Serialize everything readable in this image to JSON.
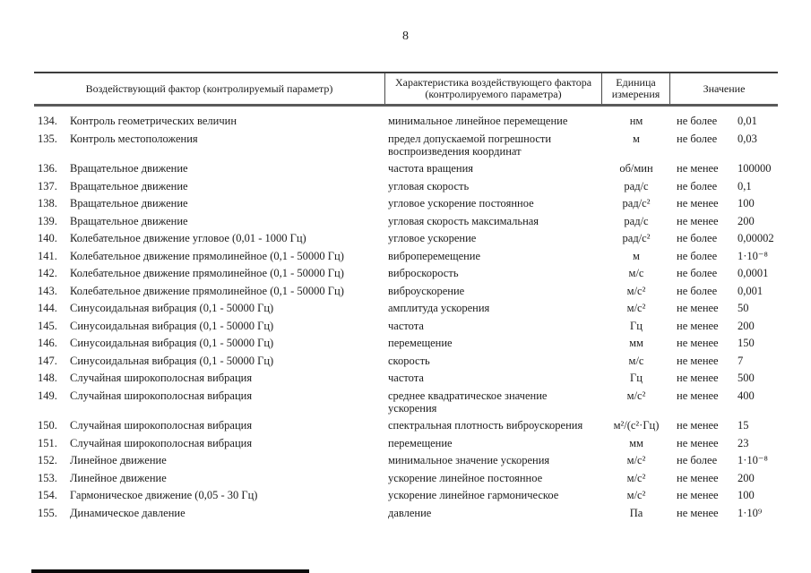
{
  "page": {
    "number": "8"
  },
  "table": {
    "headers": [
      "Воздействующий фактор (контролируемый параметр)",
      "Характеристика воздействующего фактора (контролируемого параметра)",
      "Единица измерения",
      "Значение"
    ],
    "rows": [
      {
        "num": "134.",
        "factor": "Контроль геометрических величин",
        "characteristic": "минимальное линейное перемещение",
        "unit": "нм",
        "criterion": "не более",
        "value": "0,01"
      },
      {
        "num": "135.",
        "factor": "Контроль местоположения",
        "characteristic": "предел допускаемой погрешности воспроизведения координат",
        "unit": "м",
        "criterion": "не более",
        "value": "0,03"
      },
      {
        "num": "136.",
        "factor": "Вращательное движение",
        "characteristic": "частота вращения",
        "unit": "об/мин",
        "criterion": "не менее",
        "value": "100000"
      },
      {
        "num": "137.",
        "factor": "Вращательное движение",
        "characteristic": "угловая скорость",
        "unit": "рад/с",
        "criterion": "не более",
        "value": "0,1"
      },
      {
        "num": "138.",
        "factor": "Вращательное движение",
        "characteristic": "угловое ускорение постоянное",
        "unit": "рад/с²",
        "criterion": "не менее",
        "value": "100"
      },
      {
        "num": "139.",
        "factor": "Вращательное движение",
        "characteristic": "угловая скорость максимальная",
        "unit": "рад/с",
        "criterion": "не менее",
        "value": "200"
      },
      {
        "num": "140.",
        "factor": "Колебательное движение угловое (0,01 - 1000 Гц)",
        "characteristic": "угловое ускорение",
        "unit": "рад/с²",
        "criterion": "не более",
        "value": "0,00002"
      },
      {
        "num": "141.",
        "factor": "Колебательное движение прямолинейное (0,1 - 50000 Гц)",
        "characteristic": "виброперемещение",
        "unit": "м",
        "criterion": "не более",
        "value": "1·10⁻⁸"
      },
      {
        "num": "142.",
        "factor": "Колебательное движение прямолинейное (0,1 - 50000 Гц)",
        "characteristic": "виброскорость",
        "unit": "м/с",
        "criterion": "не более",
        "value": "0,0001"
      },
      {
        "num": "143.",
        "factor": "Колебательное движение прямолинейное (0,1 - 50000 Гц)",
        "characteristic": "виброускорение",
        "unit": "м/с²",
        "criterion": "не более",
        "value": "0,001"
      },
      {
        "num": "144.",
        "factor": "Синусоидальная вибрация (0,1 - 50000 Гц)",
        "characteristic": "амплитуда ускорения",
        "unit": "м/с²",
        "criterion": "не менее",
        "value": "50"
      },
      {
        "num": "145.",
        "factor": "Синусоидальная вибрация (0,1 - 50000 Гц)",
        "characteristic": "частота",
        "unit": "Гц",
        "criterion": "не менее",
        "value": "200"
      },
      {
        "num": "146.",
        "factor": "Синусоидальная вибрация (0,1 - 50000 Гц)",
        "characteristic": "перемещение",
        "unit": "мм",
        "criterion": "не менее",
        "value": "150"
      },
      {
        "num": "147.",
        "factor": "Синусоидальная вибрация (0,1 - 50000 Гц)",
        "characteristic": "скорость",
        "unit": "м/с",
        "criterion": "не менее",
        "value": "7"
      },
      {
        "num": "148.",
        "factor": "Случайная широкополосная вибрация",
        "characteristic": "частота",
        "unit": "Гц",
        "criterion": "не менее",
        "value": "500"
      },
      {
        "num": "149.",
        "factor": "Случайная широкополосная вибрация",
        "characteristic": "среднее квадратическое значение ускорения",
        "unit": "м/с²",
        "criterion": "не менее",
        "value": "400"
      },
      {
        "num": "150.",
        "factor": "Случайная широкополосная вибрация",
        "characteristic": "спектральная плотность виброускорения",
        "unit": "м²/(с²·Гц)",
        "criterion": "не менее",
        "value": "15"
      },
      {
        "num": "151.",
        "factor": "Случайная широкополосная вибрация",
        "characteristic": "перемещение",
        "unit": "мм",
        "criterion": "не менее",
        "value": "23"
      },
      {
        "num": "152.",
        "factor": "Линейное движение",
        "characteristic": "минимальное значение ускорения",
        "unit": "м/с²",
        "criterion": "не более",
        "value": "1·10⁻⁸"
      },
      {
        "num": "153.",
        "factor": "Линейное движение",
        "characteristic": "ускорение линейное постоянное",
        "unit": "м/с²",
        "criterion": "не менее",
        "value": "200"
      },
      {
        "num": "154.",
        "factor": "Гармоническое движение (0,05 - 30 Гц)",
        "characteristic": "ускорение линейное гармоническое",
        "unit": "м/с²",
        "criterion": "не менее",
        "value": "100"
      },
      {
        "num": "155.",
        "factor": "Динамическое давление",
        "characteristic": "давление",
        "unit": "Па",
        "criterion": "не менее",
        "value": "1·10⁹"
      }
    ]
  }
}
